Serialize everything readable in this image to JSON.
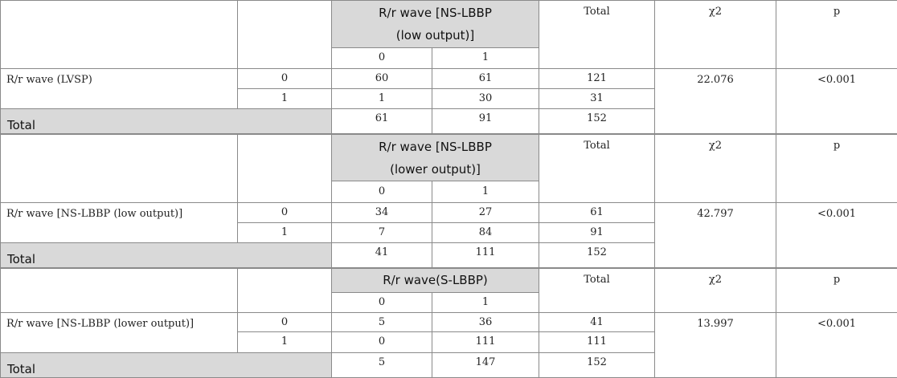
{
  "common": {
    "total": "Total",
    "chi2": "χ2",
    "p": "p",
    "lvl0": "0",
    "lvl1": "1"
  },
  "blocks": [
    {
      "col_header_line1": "R/r wave [NS-LBBP",
      "col_header_line2": "(low output)]",
      "row_label": "R/r wave (LVSP)",
      "row0": [
        "60",
        "61",
        "121"
      ],
      "row1": [
        "1",
        "30",
        "31"
      ],
      "total_row": [
        "61",
        "91",
        "152"
      ],
      "chi2": "22.076",
      "p": "<0.001"
    },
    {
      "col_header_line1": "R/r wave [NS-LBBP",
      "col_header_line2": "(lower output)]",
      "row_label": "R/r wave [NS-LBBP (low output)]",
      "row0": [
        "34",
        "27",
        "61"
      ],
      "row1": [
        "7",
        "84",
        "91"
      ],
      "total_row": [
        "41",
        "111",
        "152"
      ],
      "chi2": "42.797",
      "p": "<0.001"
    },
    {
      "col_header_line1": "R/r wave(S-LBBP)",
      "row_label": "R/r wave [NS-LBBP (lower output)]",
      "row0": [
        "5",
        "36",
        "41"
      ],
      "row1": [
        "0",
        "111",
        "111"
      ],
      "total_row": [
        "5",
        "147",
        "152"
      ],
      "chi2": "13.997",
      "p": "<0.001"
    }
  ]
}
